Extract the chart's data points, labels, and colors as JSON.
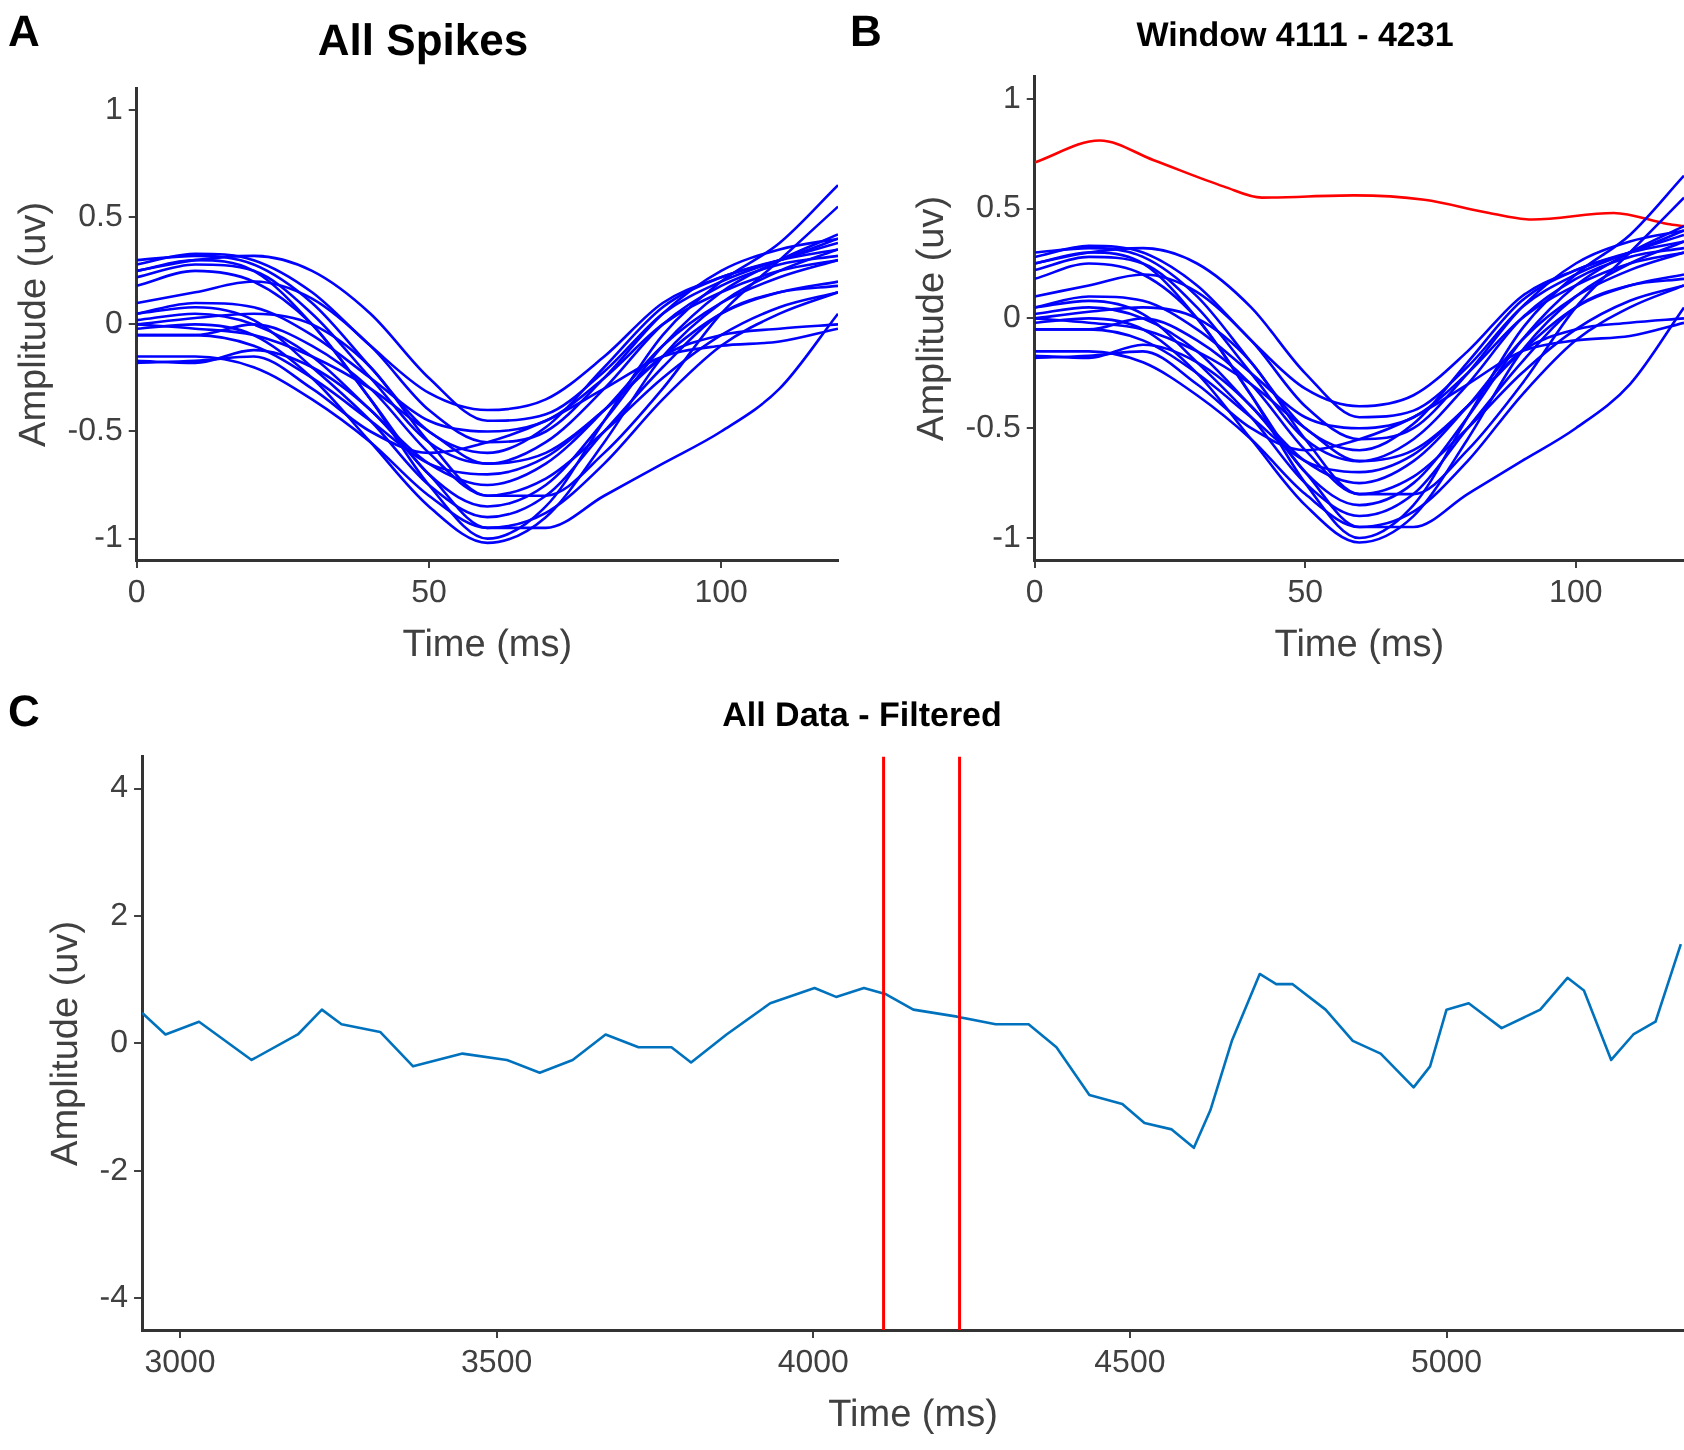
{
  "chart_data": [
    {
      "type": "line",
      "title": "All Spikes",
      "xlabel": "Time (ms)",
      "ylabel": "Amplitude (uv)",
      "annotations": [
        "A"
      ],
      "xlim": [
        0,
        120
      ],
      "xticks": [
        0,
        50,
        100
      ],
      "ylim": [
        -1.1,
        1.1
      ],
      "yticks": [
        -1,
        -0.5,
        0,
        0.5,
        1
      ],
      "x": [
        0,
        10,
        20,
        30,
        40,
        50,
        60,
        70,
        80,
        90,
        100,
        110,
        120
      ],
      "series": [
        {
          "color": "#0000ff",
          "values": [
            0.28,
            0.33,
            0.3,
            0.15,
            -0.1,
            -0.32,
            -0.4,
            -0.35,
            -0.15,
            0.1,
            0.22,
            0.3,
            0.35
          ]
        },
        {
          "color": "#0000ff",
          "values": [
            0.25,
            0.3,
            0.32,
            0.25,
            0.05,
            -0.25,
            -0.45,
            -0.42,
            -0.22,
            0.05,
            0.2,
            0.3,
            0.38
          ]
        },
        {
          "color": "#0000ff",
          "values": [
            0.22,
            0.28,
            0.25,
            0.05,
            -0.25,
            -0.55,
            -0.65,
            -0.55,
            -0.3,
            0.0,
            0.18,
            0.28,
            0.32
          ]
        },
        {
          "color": "#0000ff",
          "values": [
            0.3,
            0.32,
            0.28,
            0.1,
            -0.2,
            -0.5,
            -0.6,
            -0.48,
            -0.2,
            0.08,
            0.22,
            0.3,
            0.4
          ]
        },
        {
          "color": "#0000ff",
          "values": [
            0.18,
            0.25,
            0.2,
            0.0,
            -0.35,
            -0.7,
            -0.85,
            -0.75,
            -0.45,
            -0.1,
            0.15,
            0.3,
            0.42
          ]
        },
        {
          "color": "#0000ff",
          "values": [
            0.05,
            0.1,
            0.08,
            -0.05,
            -0.25,
            -0.45,
            -0.5,
            -0.45,
            -0.25,
            0.0,
            0.15,
            0.25,
            0.3
          ]
        },
        {
          "color": "#0000ff",
          "values": [
            0.02,
            0.05,
            0.0,
            -0.15,
            -0.4,
            -0.65,
            -0.75,
            -0.65,
            -0.4,
            -0.1,
            0.1,
            0.22,
            0.3
          ]
        },
        {
          "color": "#0000ff",
          "values": [
            0.0,
            0.03,
            0.05,
            0.0,
            -0.2,
            -0.55,
            -0.8,
            -0.8,
            -0.6,
            -0.3,
            0.05,
            0.3,
            0.55
          ]
        },
        {
          "color": "#0000ff",
          "values": [
            -0.02,
            0.0,
            -0.05,
            -0.25,
            -0.55,
            -0.85,
            -1.02,
            -0.9,
            -0.55,
            -0.15,
            0.1,
            0.25,
            0.35
          ]
        },
        {
          "color": "#0000ff",
          "values": [
            0.05,
            0.08,
            0.02,
            -0.2,
            -0.45,
            -0.75,
            -0.9,
            -0.8,
            -0.5,
            -0.2,
            0.05,
            0.15,
            0.18
          ]
        },
        {
          "color": "#0000ff",
          "values": [
            0.0,
            -0.02,
            -0.05,
            -0.15,
            -0.3,
            -0.5,
            -0.65,
            -0.6,
            -0.4,
            -0.15,
            -0.05,
            -0.02,
            0.0
          ]
        },
        {
          "color": "#0000ff",
          "values": [
            -0.05,
            -0.05,
            -0.1,
            -0.25,
            -0.45,
            -0.65,
            -0.7,
            -0.62,
            -0.4,
            -0.15,
            0.05,
            0.15,
            0.2
          ]
        },
        {
          "color": "#0000ff",
          "values": [
            -0.17,
            -0.18,
            -0.12,
            -0.2,
            -0.4,
            -0.7,
            -0.95,
            -0.95,
            -0.8,
            -0.65,
            -0.5,
            -0.3,
            0.05
          ]
        },
        {
          "color": "#0000ff",
          "values": [
            -0.18,
            -0.17,
            -0.15,
            -0.3,
            -0.5,
            -0.6,
            -0.55,
            -0.45,
            -0.3,
            -0.15,
            -0.1,
            -0.08,
            -0.02
          ]
        },
        {
          "color": "#0000ff",
          "values": [
            -0.15,
            -0.15,
            -0.2,
            -0.35,
            -0.55,
            -0.8,
            -0.95,
            -0.88,
            -0.65,
            -0.35,
            -0.1,
            0.05,
            0.15
          ]
        },
        {
          "color": "#0000ff",
          "values": [
            0.25,
            0.3,
            0.25,
            0.0,
            -0.35,
            -0.75,
            -1.0,
            -0.85,
            -0.45,
            -0.05,
            0.2,
            0.38,
            0.65
          ]
        },
        {
          "color": "#0000ff",
          "values": [
            0.1,
            0.15,
            0.2,
            0.12,
            -0.1,
            -0.4,
            -0.55,
            -0.5,
            -0.25,
            0.05,
            0.25,
            0.35,
            0.4
          ]
        },
        {
          "color": "#0000ff",
          "values": [
            -0.05,
            -0.05,
            0.0,
            -0.1,
            -0.3,
            -0.6,
            -0.8,
            -0.72,
            -0.5,
            -0.25,
            -0.05,
            0.08,
            0.15
          ]
        }
      ]
    },
    {
      "type": "line",
      "title": "Window 4111 - 4231",
      "xlabel": "Time (ms)",
      "ylabel": "Amplitude (uv)",
      "annotations": [
        "B"
      ],
      "xlim": [
        0,
        120
      ],
      "xticks": [
        0,
        50,
        100
      ],
      "ylim": [
        -1.1,
        1.1
      ],
      "yticks": [
        -1,
        -0.5,
        0,
        0.5,
        1
      ],
      "x": [
        0,
        10,
        20,
        30,
        40,
        50,
        60,
        70,
        80,
        90,
        100,
        110,
        120
      ],
      "series": [
        {
          "color": "#0000ff",
          "values": [
            0.28,
            0.33,
            0.3,
            0.15,
            -0.1,
            -0.32,
            -0.4,
            -0.35,
            -0.15,
            0.1,
            0.22,
            0.3,
            0.35
          ]
        },
        {
          "color": "#0000ff",
          "values": [
            0.25,
            0.3,
            0.32,
            0.25,
            0.05,
            -0.25,
            -0.45,
            -0.42,
            -0.22,
            0.05,
            0.2,
            0.3,
            0.38
          ]
        },
        {
          "color": "#0000ff",
          "values": [
            0.22,
            0.28,
            0.25,
            0.05,
            -0.25,
            -0.55,
            -0.65,
            -0.55,
            -0.3,
            0.0,
            0.18,
            0.28,
            0.32
          ]
        },
        {
          "color": "#0000ff",
          "values": [
            0.3,
            0.32,
            0.28,
            0.1,
            -0.2,
            -0.5,
            -0.6,
            -0.48,
            -0.2,
            0.08,
            0.22,
            0.3,
            0.4
          ]
        },
        {
          "color": "#0000ff",
          "values": [
            0.18,
            0.25,
            0.2,
            0.0,
            -0.35,
            -0.7,
            -0.85,
            -0.75,
            -0.45,
            -0.1,
            0.15,
            0.3,
            0.42
          ]
        },
        {
          "color": "#0000ff",
          "values": [
            0.05,
            0.1,
            0.08,
            -0.05,
            -0.25,
            -0.45,
            -0.5,
            -0.45,
            -0.25,
            0.0,
            0.15,
            0.25,
            0.3
          ]
        },
        {
          "color": "#0000ff",
          "values": [
            0.02,
            0.05,
            0.0,
            -0.15,
            -0.4,
            -0.65,
            -0.75,
            -0.65,
            -0.4,
            -0.1,
            0.1,
            0.22,
            0.3
          ]
        },
        {
          "color": "#0000ff",
          "values": [
            0.0,
            0.03,
            0.05,
            0.0,
            -0.2,
            -0.55,
            -0.8,
            -0.8,
            -0.6,
            -0.3,
            0.05,
            0.3,
            0.55
          ]
        },
        {
          "color": "#0000ff",
          "values": [
            -0.02,
            0.0,
            -0.05,
            -0.25,
            -0.55,
            -0.85,
            -1.02,
            -0.9,
            -0.55,
            -0.15,
            0.1,
            0.25,
            0.35
          ]
        },
        {
          "color": "#0000ff",
          "values": [
            0.05,
            0.08,
            0.02,
            -0.2,
            -0.45,
            -0.75,
            -0.9,
            -0.8,
            -0.5,
            -0.2,
            0.05,
            0.15,
            0.18
          ]
        },
        {
          "color": "#0000ff",
          "values": [
            0.0,
            -0.02,
            -0.05,
            -0.15,
            -0.3,
            -0.5,
            -0.65,
            -0.6,
            -0.4,
            -0.15,
            -0.05,
            -0.02,
            0.0
          ]
        },
        {
          "color": "#0000ff",
          "values": [
            -0.05,
            -0.05,
            -0.1,
            -0.25,
            -0.45,
            -0.65,
            -0.7,
            -0.62,
            -0.4,
            -0.15,
            0.05,
            0.15,
            0.2
          ]
        },
        {
          "color": "#0000ff",
          "values": [
            -0.17,
            -0.18,
            -0.12,
            -0.2,
            -0.4,
            -0.7,
            -0.95,
            -0.95,
            -0.8,
            -0.65,
            -0.5,
            -0.3,
            0.05
          ]
        },
        {
          "color": "#0000ff",
          "values": [
            -0.18,
            -0.17,
            -0.15,
            -0.3,
            -0.5,
            -0.6,
            -0.55,
            -0.45,
            -0.3,
            -0.15,
            -0.1,
            -0.08,
            -0.02
          ]
        },
        {
          "color": "#0000ff",
          "values": [
            -0.15,
            -0.15,
            -0.2,
            -0.35,
            -0.55,
            -0.8,
            -0.95,
            -0.88,
            -0.65,
            -0.35,
            -0.1,
            0.05,
            0.15
          ]
        },
        {
          "color": "#0000ff",
          "values": [
            0.25,
            0.3,
            0.25,
            0.0,
            -0.35,
            -0.75,
            -1.0,
            -0.85,
            -0.45,
            -0.05,
            0.2,
            0.38,
            0.65
          ]
        },
        {
          "color": "#0000ff",
          "values": [
            0.1,
            0.15,
            0.2,
            0.12,
            -0.1,
            -0.4,
            -0.55,
            -0.5,
            -0.25,
            0.05,
            0.25,
            0.35,
            0.4
          ]
        },
        {
          "color": "#0000ff",
          "values": [
            -0.05,
            -0.05,
            0.0,
            -0.1,
            -0.3,
            -0.6,
            -0.8,
            -0.72,
            -0.5,
            -0.25,
            -0.05,
            0.08,
            0.15
          ]
        },
        {
          "color": "#ff0000",
          "x": [
            0,
            12,
            22,
            35,
            42,
            59,
            72,
            84,
            92,
            107,
            117,
            120
          ],
          "values": [
            0.71,
            0.81,
            0.72,
            0.6,
            0.55,
            0.56,
            0.54,
            0.48,
            0.45,
            0.48,
            0.43,
            0.42
          ]
        }
      ]
    },
    {
      "type": "line",
      "title": "All Data - Filtered",
      "xlabel": "Time (ms)",
      "ylabel": "Amplitude (uv)",
      "annotations": [
        "C"
      ],
      "xlim": [
        2940,
        5375
      ],
      "xticks": [
        3000,
        3500,
        4000,
        4500,
        5000
      ],
      "ylim": [
        -4.5,
        4.5
      ],
      "yticks": [
        -4,
        -2,
        0,
        2,
        4
      ],
      "ref_lines": [
        {
          "axis": "x",
          "value": 4111,
          "color": "#ff0000"
        },
        {
          "axis": "x",
          "value": 4231,
          "color": "#ff0000"
        }
      ],
      "series": [
        {
          "color": "#0072bd",
          "x": [
            2940,
            2977,
            3030,
            3113,
            3186,
            3224,
            3255,
            3316,
            3368,
            3446,
            3516,
            3568,
            3620,
            3672,
            3724,
            3776,
            3807,
            3863,
            3932,
            4002,
            4036,
            4080,
            4115,
            4158,
            4227,
            4288,
            4340,
            4384,
            4436,
            4488,
            4523,
            4566,
            4601,
            4627,
            4661,
            4705,
            4731,
            4757,
            4809,
            4852,
            4896,
            4948,
            4974,
            5000,
            5035,
            5087,
            5148,
            5191,
            5217,
            5260,
            5295,
            5330,
            5370
          ],
          "values": [
            0.48,
            0.14,
            0.34,
            -0.26,
            0.14,
            0.53,
            0.3,
            0.18,
            -0.36,
            -0.16,
            -0.26,
            -0.46,
            -0.26,
            0.14,
            -0.06,
            -0.06,
            -0.3,
            0.14,
            0.63,
            0.87,
            0.73,
            0.87,
            0.77,
            0.53,
            0.42,
            0.3,
            0.3,
            -0.06,
            -0.81,
            -0.95,
            -1.25,
            -1.35,
            -1.64,
            -1.05,
            0.04,
            1.09,
            0.93,
            0.93,
            0.53,
            0.04,
            -0.16,
            -0.69,
            -0.36,
            0.53,
            0.63,
            0.24,
            0.53,
            1.03,
            0.83,
            -0.26,
            0.14,
            0.34,
            1.56
          ]
        }
      ]
    }
  ]
}
